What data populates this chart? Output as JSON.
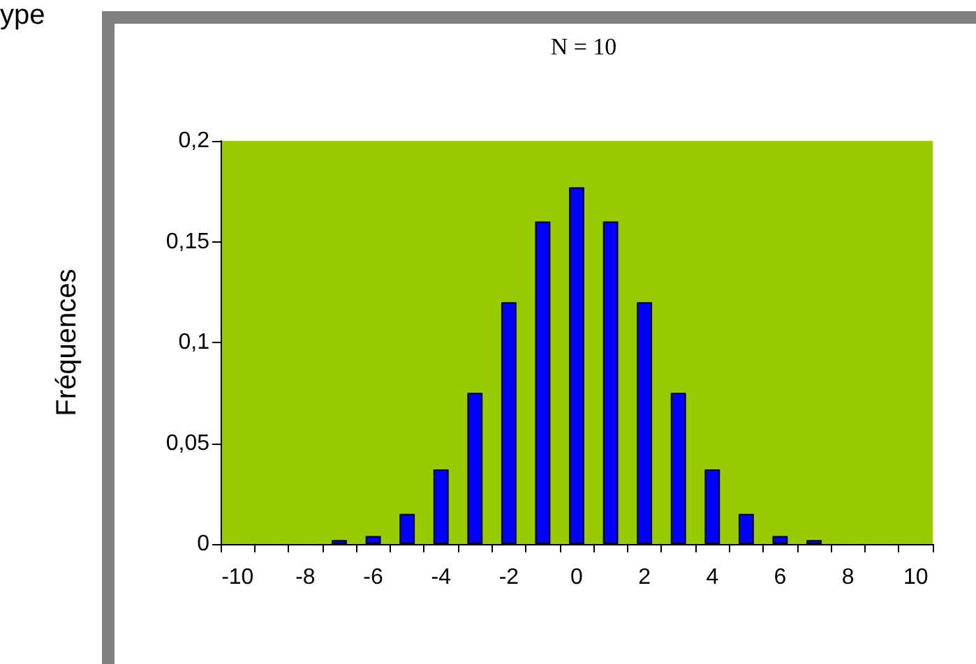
{
  "chart_data": {
    "type": "bar",
    "title": "N = 10",
    "ylabel": "Fréquences",
    "annotations": [
      "ype"
    ],
    "categories": [
      "-10",
      null,
      "-8",
      null,
      "-6",
      null,
      "-4",
      null,
      "-2",
      null,
      "0",
      null,
      "2",
      null,
      "4",
      null,
      "6",
      null,
      "8",
      null,
      "10"
    ],
    "values": [
      null,
      null,
      null,
      0.002,
      0.004,
      0.015,
      0.037,
      0.075,
      0.12,
      0.16,
      0.177,
      0.16,
      0.12,
      0.075,
      0.037,
      0.015,
      0.004,
      0.002,
      null,
      null,
      null
    ],
    "color": "#0000ff",
    "ylim": [
      0,
      0.2
    ],
    "yticks": [
      0,
      {
        "value": 0.05,
        "label": "0,05"
      },
      {
        "value": 0.1,
        "label": "0,1"
      },
      {
        "value": 0.15,
        "label": "0,15"
      },
      {
        "value": 0.2,
        "label": "0,2"
      }
    ],
    "grid": false
  }
}
